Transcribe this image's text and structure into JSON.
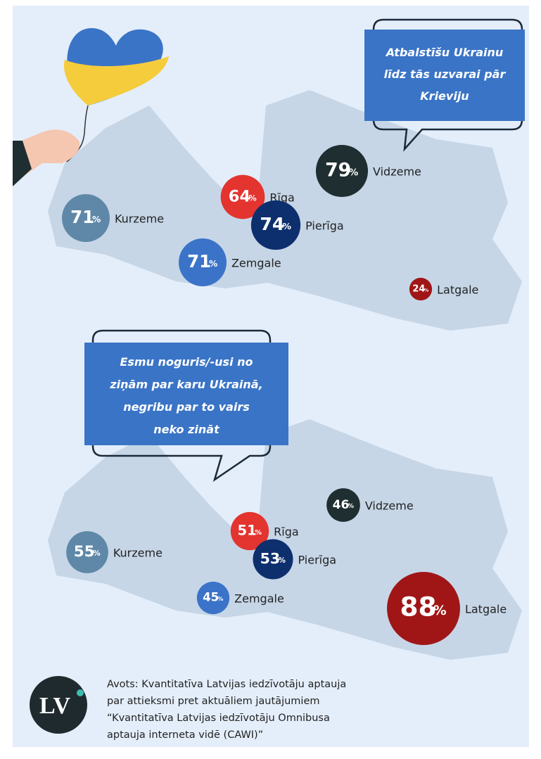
{
  "chart_data": [
    {
      "type": "bubble_map",
      "title": "Atbalstīšu Ukrainu līdz tās uzvarai pār Krieviju",
      "categories": [
        "Vidzeme",
        "Rīga",
        "Pierīga",
        "Kurzeme",
        "Zemgale",
        "Latgale"
      ],
      "values": [
        79,
        64,
        74,
        71,
        71,
        24
      ],
      "unit": "%",
      "colors": [
        "#1f2e30",
        "#e3342f",
        "#0e2f6d",
        "#5f88a8",
        "#3b73c8",
        "#a01616"
      ]
    },
    {
      "type": "bubble_map",
      "title": "Esmu noguris/-usi no ziņām par karu Ukrainā, negribu par to vairs neko zināt",
      "categories": [
        "Vidzeme",
        "Rīga",
        "Pierīga",
        "Kurzeme",
        "Zemgale",
        "Latgale"
      ],
      "values": [
        46,
        51,
        53,
        55,
        45,
        88
      ],
      "unit": "%",
      "colors": [
        "#1f2e30",
        "#e3342f",
        "#0e2f6d",
        "#5f88a8",
        "#3b73c8",
        "#a01616"
      ]
    }
  ],
  "logo": "LV",
  "source": [
    "Avots: Kvantitatīva Latvijas iedzīvotāju aptauja",
    "par attieksmi pret aktuāliem jautājumiem",
    "“Kvantitatīva Latvijas iedzīvotāju Omnibusa",
    "aptauja interneta vidē (CAWI)”"
  ]
}
